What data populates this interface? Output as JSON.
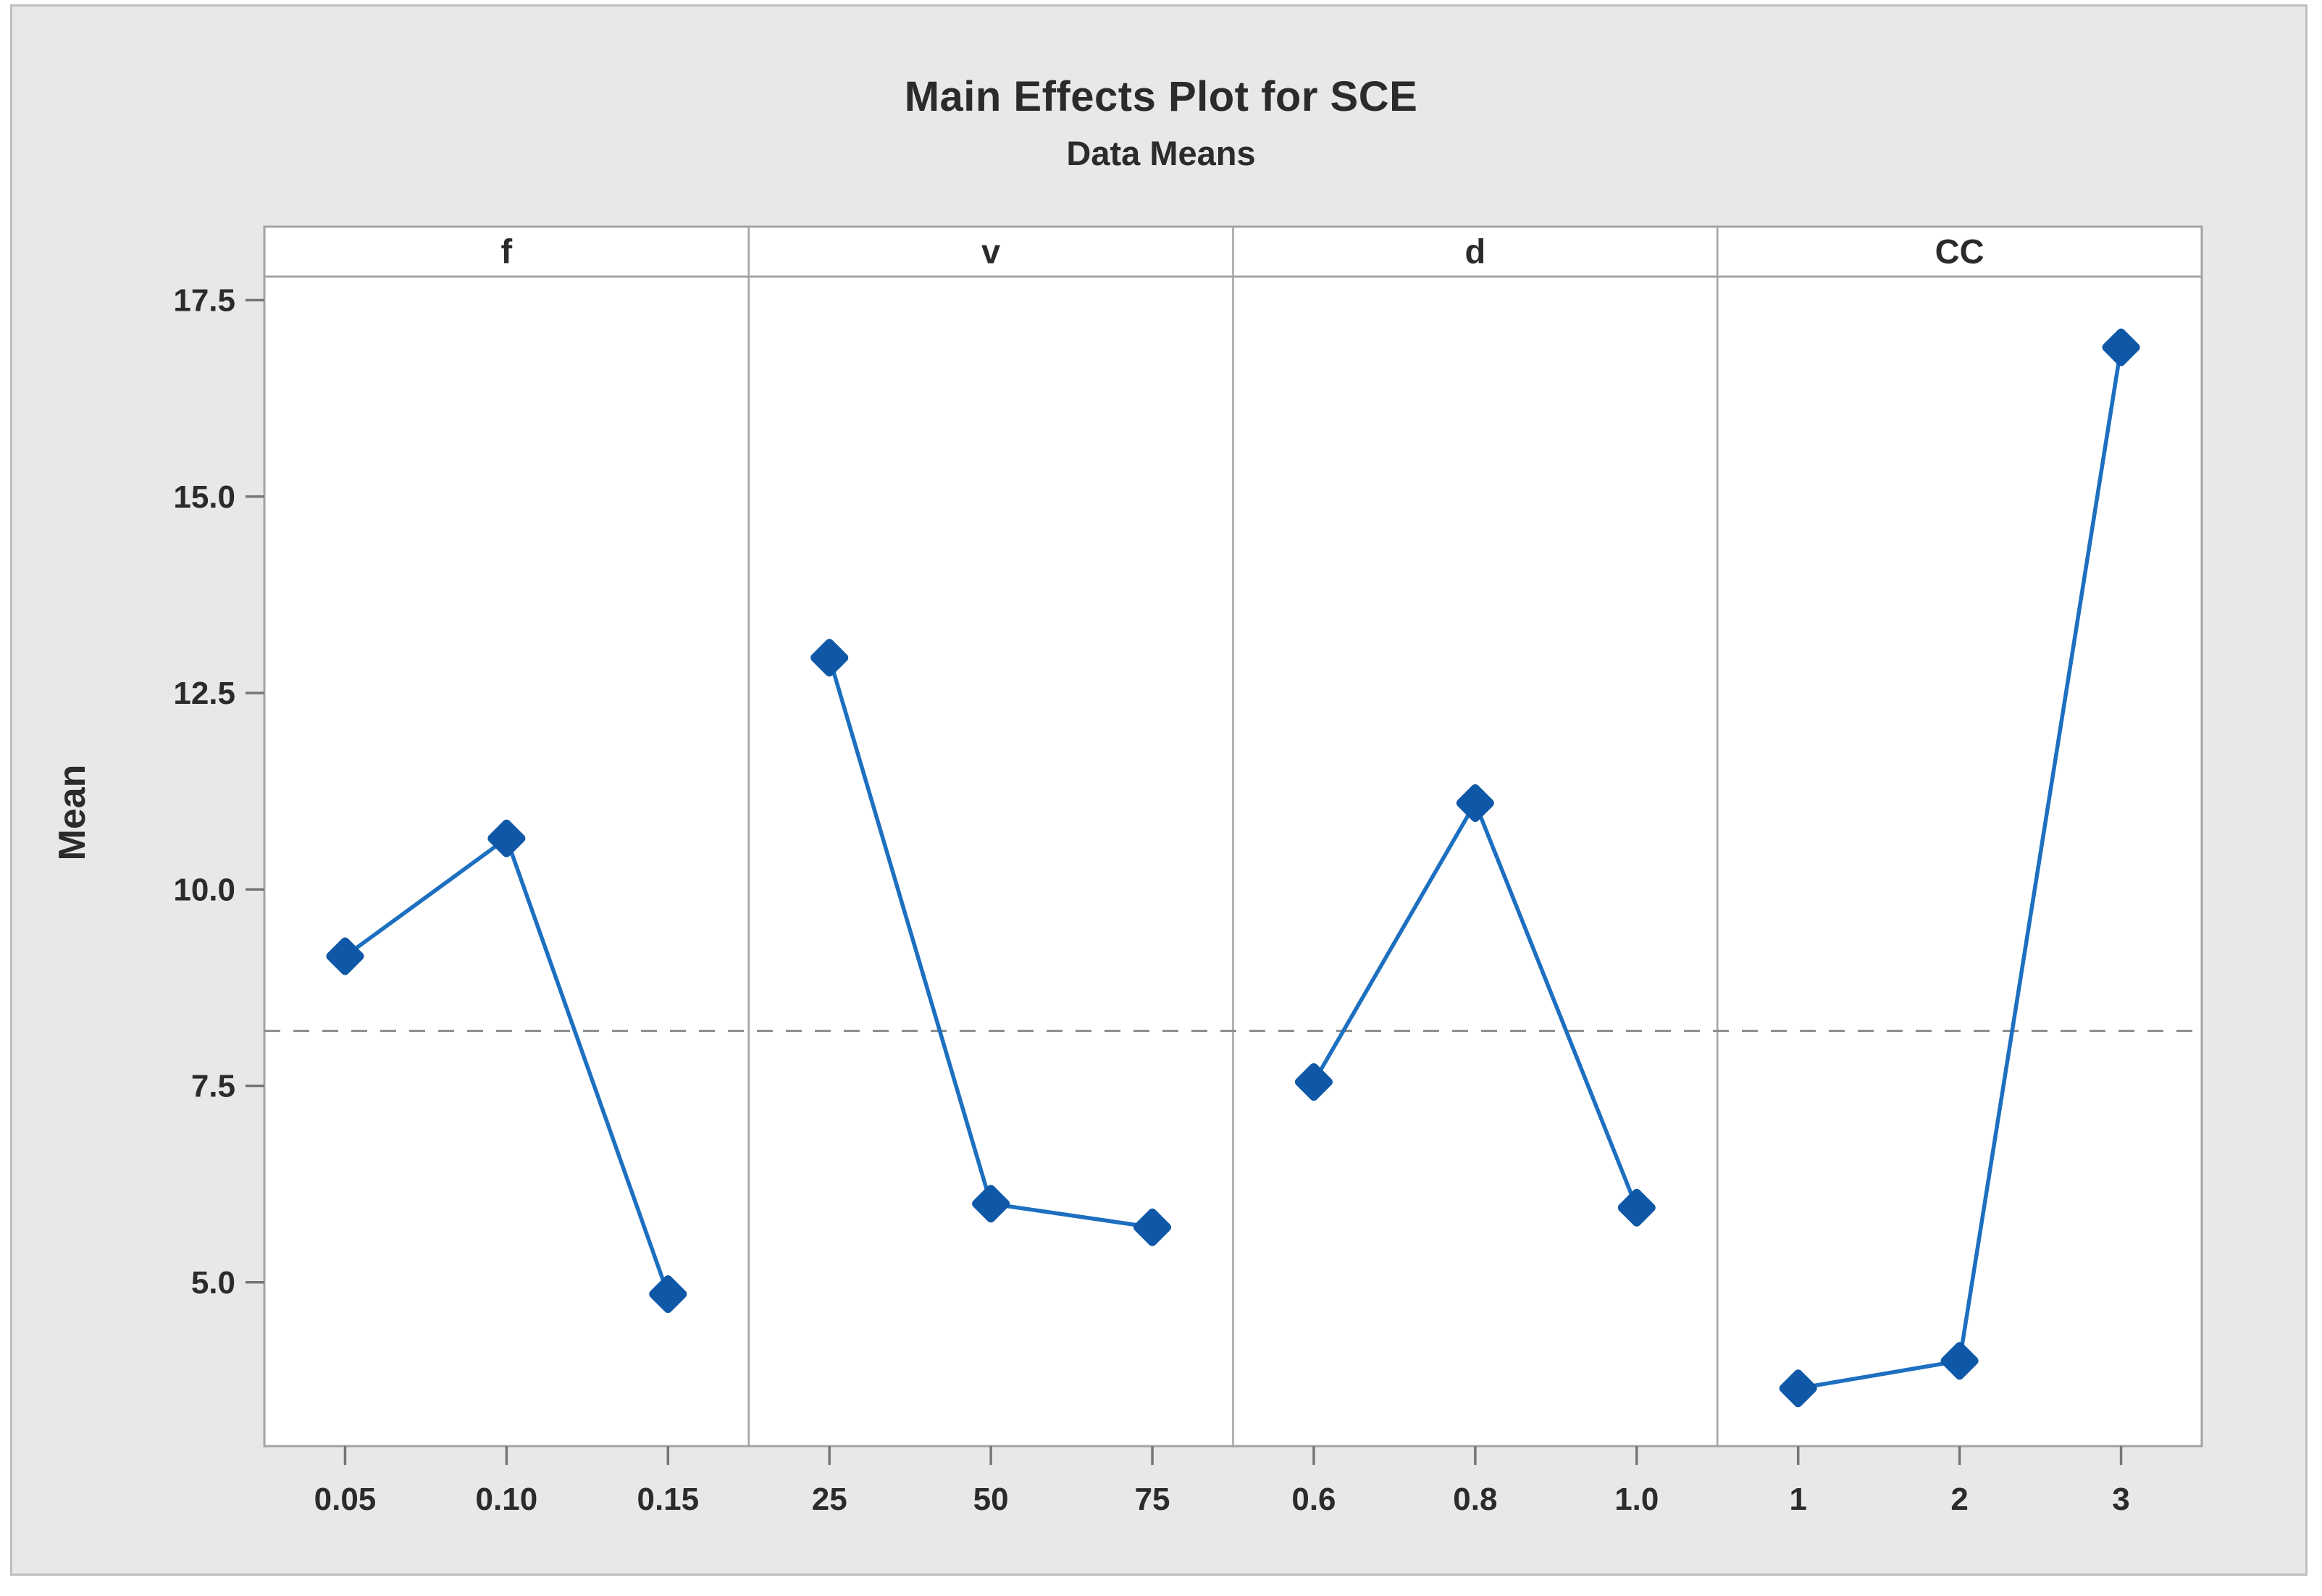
{
  "title": "Main Effects Plot for SCE",
  "subtitle": "Data Means",
  "ylabel": "Mean",
  "colors": {
    "figure_background": "#e8e8e8",
    "panel_background": "#ffffff",
    "panel_border": "#a3a3a3",
    "tick_mark": "#757575",
    "text": "#2b2b2b",
    "line": "#1d6fc0",
    "marker": "#0f58a8",
    "reference_line": "#8a8a8a"
  },
  "chart_data": {
    "type": "line",
    "title": "Main Effects Plot for SCE",
    "subtitle": "Data Means",
    "ylabel": "Mean",
    "yticks": [
      17.5,
      15.0,
      12.5,
      10.0,
      7.5,
      5.0
    ],
    "ylim": [
      2.9,
      17.8
    ],
    "grid": false,
    "reference_line": {
      "value": 8.2,
      "style": "dashed",
      "meaning": "grand mean of SCE"
    },
    "panels": [
      {
        "factor": "f",
        "categories": [
          "0.05",
          "0.10",
          "0.15"
        ],
        "means": [
          9.15,
          10.65,
          4.85
        ]
      },
      {
        "factor": "v",
        "categories": [
          "25",
          "50",
          "75"
        ],
        "means": [
          12.95,
          6.0,
          5.7
        ]
      },
      {
        "factor": "d",
        "categories": [
          "0.6",
          "0.8",
          "1.0"
        ],
        "means": [
          7.55,
          11.1,
          5.95
        ]
      },
      {
        "factor": "CC",
        "categories": [
          "1",
          "2",
          "3"
        ],
        "means": [
          3.65,
          4.0,
          16.9
        ]
      }
    ]
  }
}
